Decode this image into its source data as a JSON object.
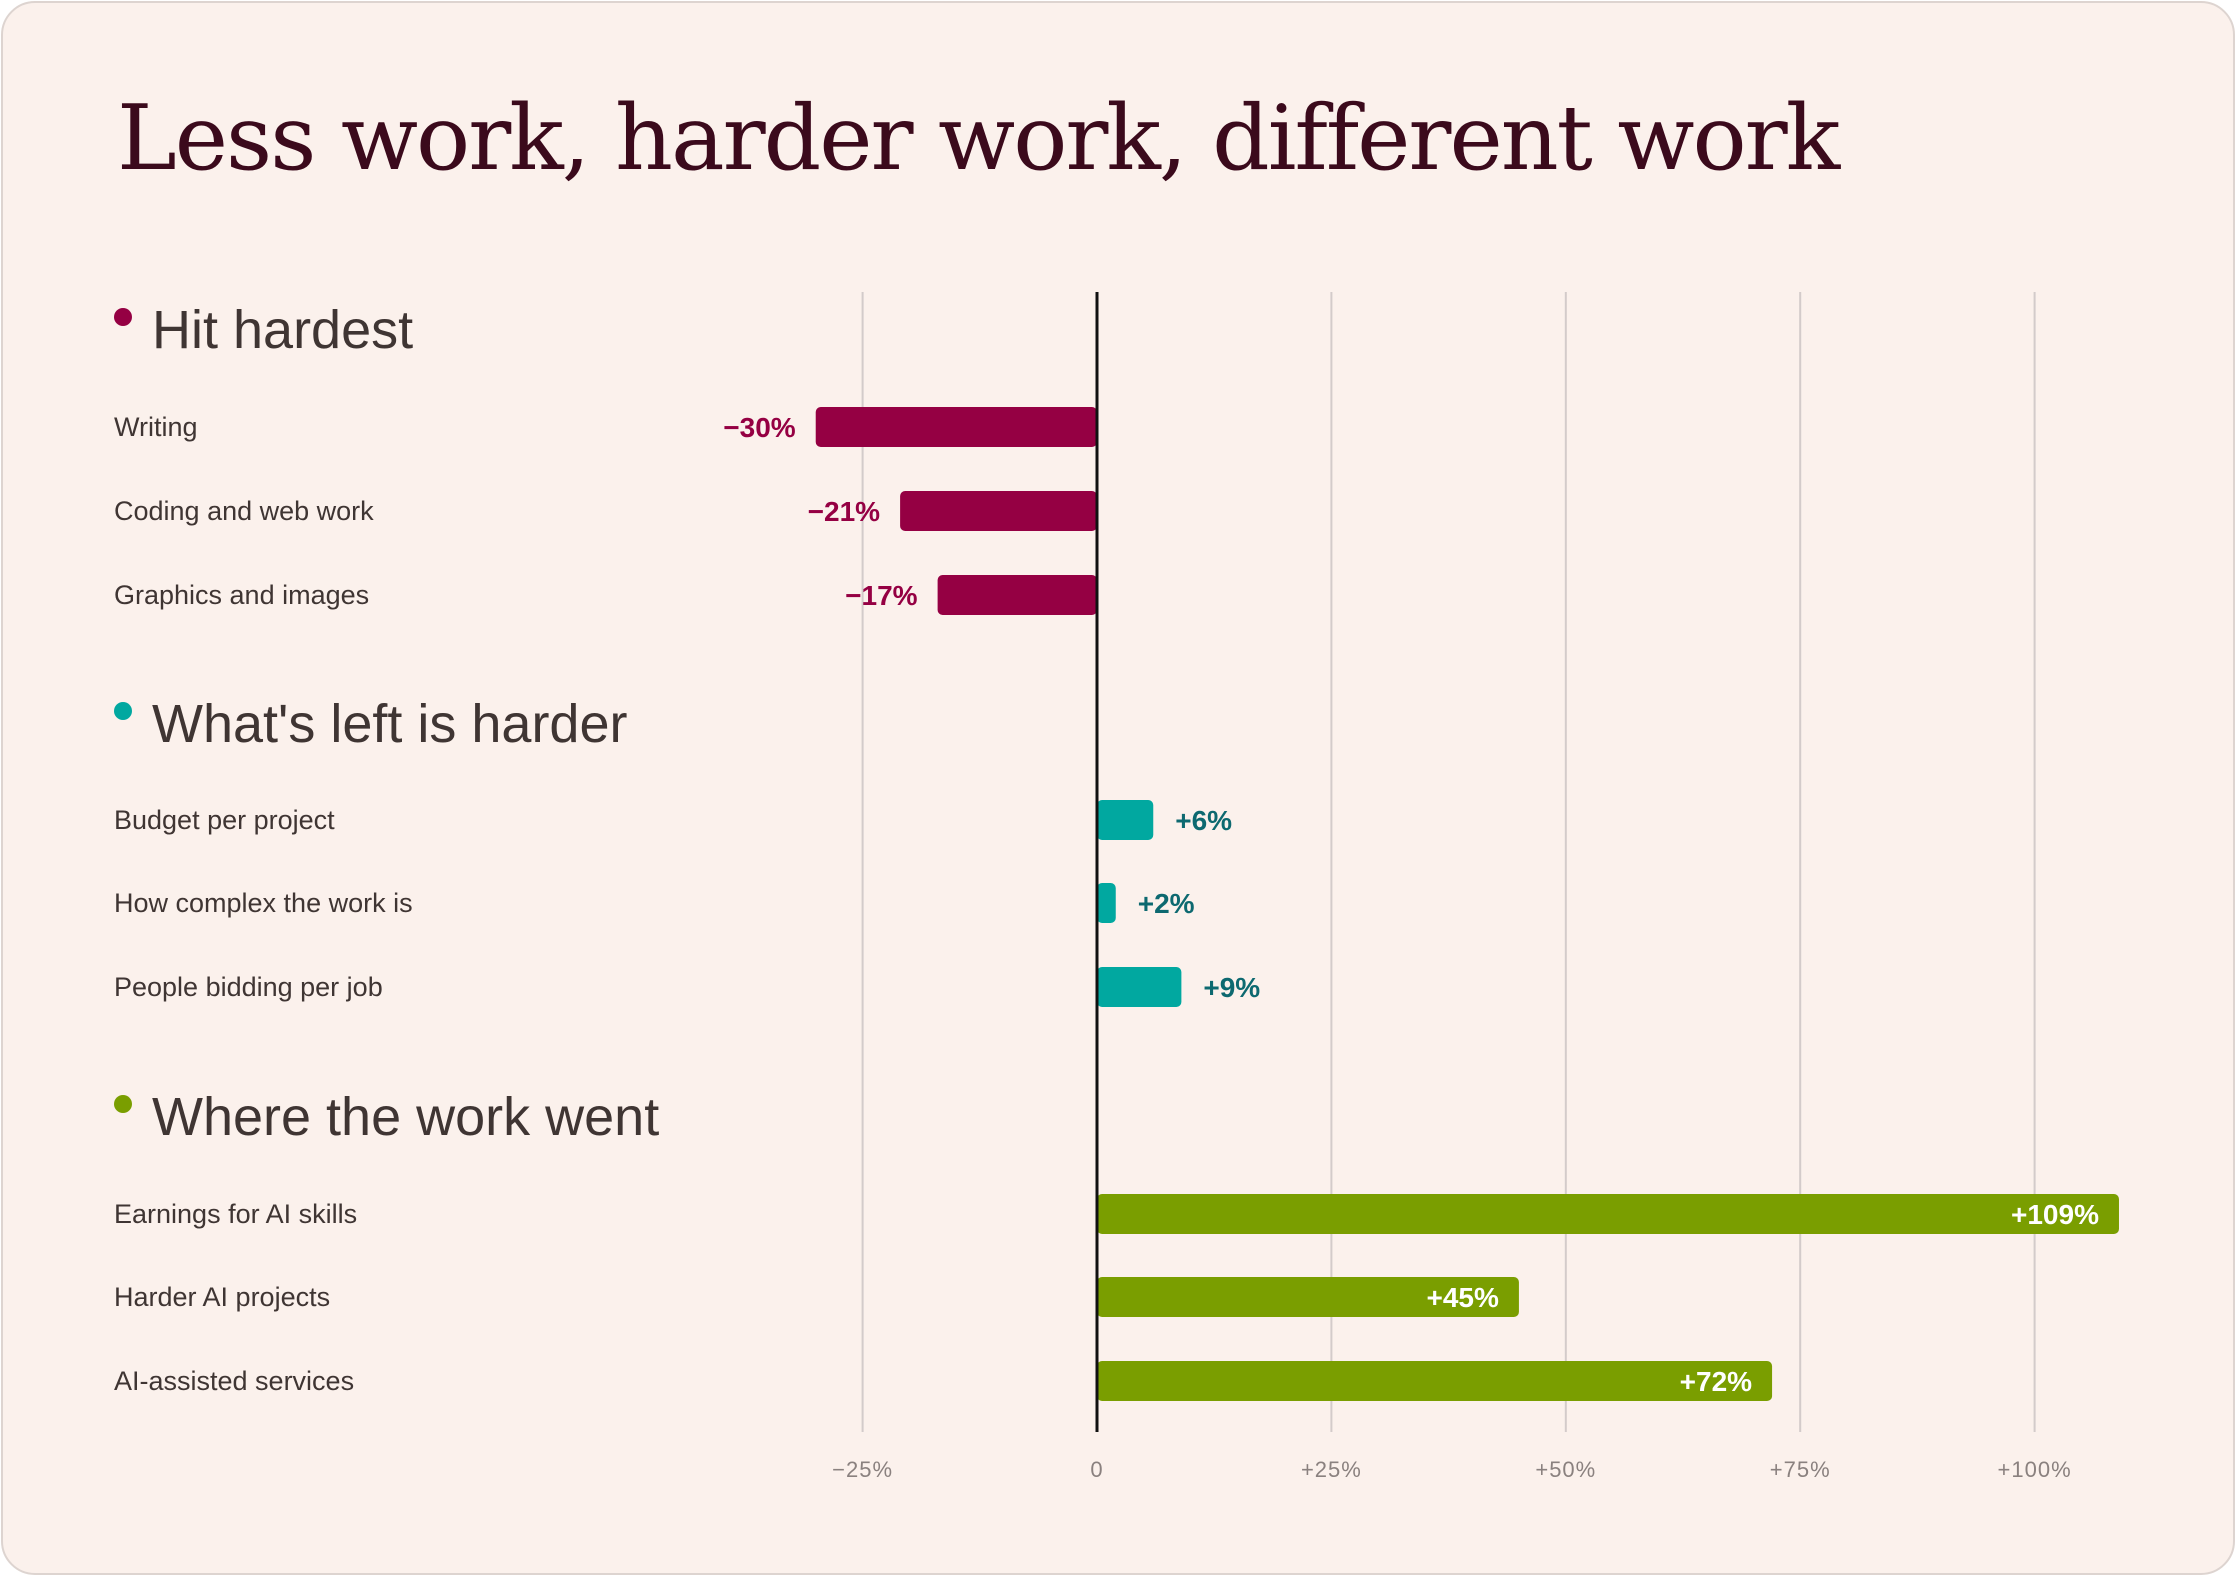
{
  "colors": {
    "background": "#fbf1ec",
    "title": "#3b0a1c",
    "text": "#3f3533",
    "zero_line": "#111111",
    "grid": "#d3cbca",
    "tick": "#8a817f",
    "neg": "#950043",
    "mid": "#01a8a0",
    "mid_label": "#0d6970",
    "pos": "#7a9e00"
  },
  "chart_data": {
    "type": "bar",
    "orientation": "horizontal",
    "title": "Less work, harder work, different work",
    "xlim": [
      -25,
      100
    ],
    "x_ticks": [
      -25,
      0,
      25,
      50,
      75,
      100
    ],
    "x_tick_labels": [
      "−25%",
      "0",
      "+25%",
      "+50%",
      "+75%",
      "+100%"
    ],
    "grid": true,
    "groups": [
      {
        "name": "Hit hardest",
        "color_key": "neg",
        "categories": [
          "Writing",
          "Coding and web work",
          "Graphics and images"
        ],
        "values": [
          -30,
          -21,
          -17
        ],
        "labels": [
          "−30%",
          "−21%",
          "−17%"
        ]
      },
      {
        "name": "What's left is harder",
        "color_key": "mid",
        "categories": [
          "Budget per project",
          "How complex the work is",
          "People bidding per job"
        ],
        "values": [
          6,
          2,
          9
        ],
        "labels": [
          "+6%",
          "+2%",
          "+9%"
        ]
      },
      {
        "name": "Where the work went",
        "color_key": "pos",
        "categories": [
          "Earnings for AI skills",
          "Harder AI projects",
          "AI-assisted services"
        ],
        "values": [
          109,
          45,
          72
        ],
        "labels": [
          "+109%",
          "+45%",
          "+72%"
        ]
      }
    ]
  }
}
